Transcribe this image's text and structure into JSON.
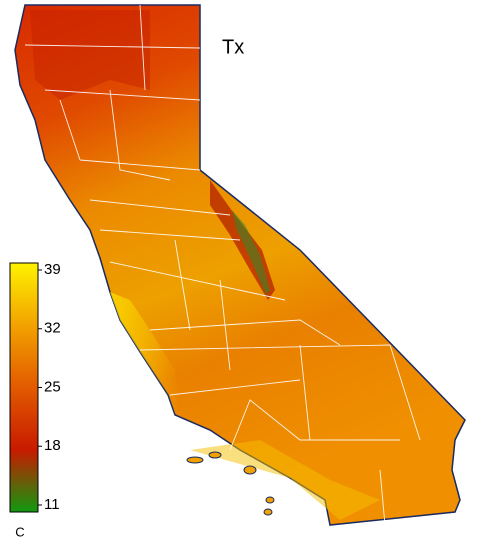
{
  "map": {
    "title": "Tx",
    "colorbar": {
      "lim": [
        11,
        39
      ],
      "ticks": [
        39,
        32,
        25,
        18,
        11
      ],
      "unit": "C",
      "colors": [
        "#119a11",
        "#c81a00",
        "#e25a00",
        "#f2a200",
        "#fff200"
      ]
    }
  }
}
